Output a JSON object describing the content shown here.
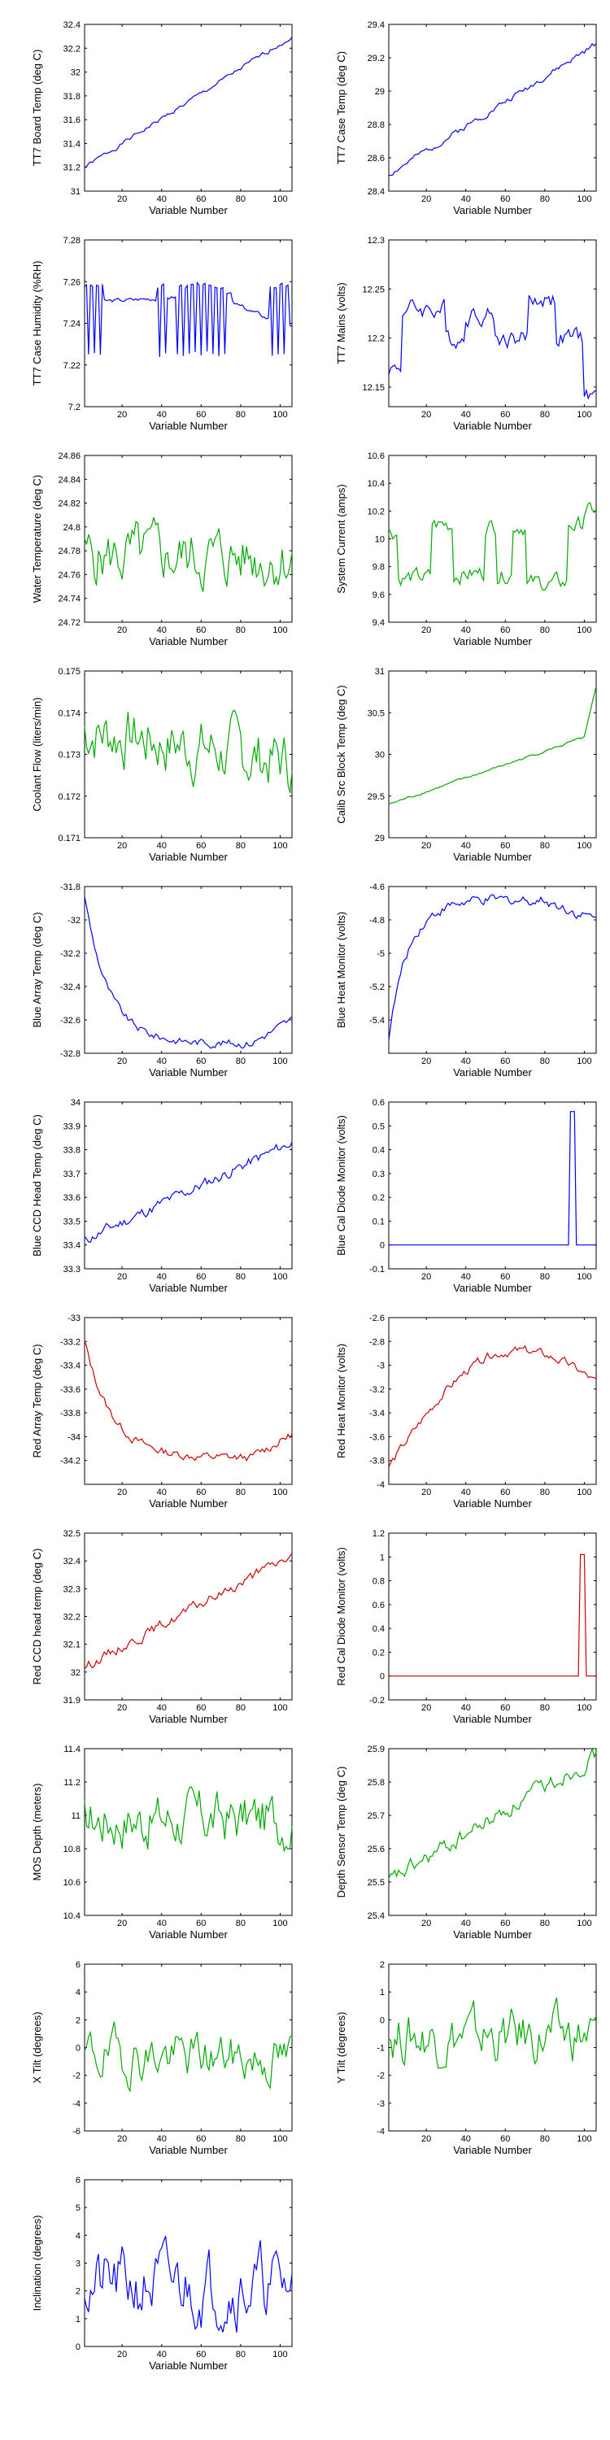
{
  "figure": {
    "background": "#ffffff"
  },
  "chart_data": [
    {
      "type": "line",
      "color": "#0000ff",
      "ylabel": "TT7 Board Temp (deg C)",
      "xlabel": "Variable Number",
      "xlim": [
        1,
        106
      ],
      "ylim": [
        31,
        32.4
      ],
      "xticks": [
        "20",
        "40",
        "60",
        "80",
        "100"
      ],
      "xtick_values": [
        20,
        40,
        60,
        80,
        100
      ],
      "yticks": [
        "31",
        "31.2",
        "31.4",
        "31.6",
        "31.8",
        "32",
        "32.2",
        "32.4"
      ],
      "ytick_values": [
        31,
        31.2,
        31.4,
        31.6,
        31.8,
        32,
        32.2,
        32.4
      ],
      "shape": "linear",
      "y_start": 31.2,
      "y_end": 32.3,
      "noise": 0.015,
      "seed": 1
    },
    {
      "type": "line",
      "color": "#0000ff",
      "ylabel": "TT7 Case Temp (deg C)",
      "xlabel": "Variable Number",
      "xlim": [
        1,
        106
      ],
      "ylim": [
        28.4,
        29.4
      ],
      "xticks": [
        "20",
        "40",
        "60",
        "80",
        "100"
      ],
      "xtick_values": [
        20,
        40,
        60,
        80,
        100
      ],
      "yticks": [
        "28.4",
        "28.6",
        "28.8",
        "29",
        "29.2",
        "29.4"
      ],
      "ytick_values": [
        28.4,
        28.6,
        28.8,
        29,
        29.2,
        29.4
      ],
      "shape": "linear",
      "y_start": 28.5,
      "y_end": 29.28,
      "noise": 0.015,
      "seed": 2
    },
    {
      "type": "line",
      "color": "#0000ff",
      "ylabel": "TT7 Case Humidity (%RH)",
      "xlabel": "Variable Number",
      "xlim": [
        1,
        106
      ],
      "ylim": [
        7.2,
        7.28
      ],
      "xticks": [
        "20",
        "40",
        "60",
        "80",
        "100"
      ],
      "xtick_values": [
        20,
        40,
        60,
        80,
        100
      ],
      "yticks": [
        "7.2",
        "7.22",
        "7.24",
        "7.26",
        "7.28"
      ],
      "ytick_values": [
        7.2,
        7.22,
        7.24,
        7.26,
        7.28
      ],
      "shape": "toggle",
      "y_start": 7.25,
      "y_alt": 7.24,
      "period": 3,
      "blocks": [
        [
          1,
          10
        ],
        [
          38,
          42
        ],
        [
          48,
          72
        ],
        [
          95,
          104
        ]
      ],
      "noise": 0.003,
      "seed": 3
    },
    {
      "type": "line",
      "color": "#0000ff",
      "ylabel": "TT7 Mains  (volts)",
      "xlabel": "Variable Number",
      "xlim": [
        1,
        106
      ],
      "ylim": [
        12.13,
        12.3
      ],
      "xticks": [
        "20",
        "40",
        "60",
        "80",
        "100"
      ],
      "xtick_values": [
        20,
        40,
        60,
        80,
        100
      ],
      "yticks": [
        "12.15",
        "12.2",
        "12.25",
        "12.3"
      ],
      "ytick_values": [
        12.15,
        12.2,
        12.25,
        12.3
      ],
      "shape": "steps",
      "y_start": 12.16,
      "y_end": 12.14,
      "levels": [
        [
          1,
          12.17
        ],
        [
          8,
          12.23
        ],
        [
          30,
          12.2
        ],
        [
          40,
          12.225
        ],
        [
          55,
          12.2
        ],
        [
          72,
          12.24
        ],
        [
          86,
          12.2
        ],
        [
          100,
          12.14
        ]
      ],
      "noise": 0.008,
      "seed": 4
    },
    {
      "type": "line",
      "color": "#00aa00",
      "ylabel": "Water Temperature (deg C)",
      "xlabel": "Variable Number",
      "xlim": [
        1,
        106
      ],
      "ylim": [
        24.72,
        24.86
      ],
      "xticks": [
        "20",
        "40",
        "60",
        "80",
        "100"
      ],
      "xtick_values": [
        20,
        40,
        60,
        80,
        100
      ],
      "yticks": [
        "24.72",
        "24.74",
        "24.76",
        "24.78",
        "24.8",
        "24.82",
        "24.84",
        "24.86"
      ],
      "ytick_values": [
        24.72,
        24.74,
        24.76,
        24.78,
        24.8,
        24.82,
        24.84,
        24.86
      ],
      "shape": "noise",
      "y_start": 24.775,
      "y_end": 24.775,
      "noise": 0.02,
      "seed": 5
    },
    {
      "type": "line",
      "color": "#00aa00",
      "ylabel": "System Current (amps)",
      "xlabel": "Variable Number",
      "xlim": [
        1,
        106
      ],
      "ylim": [
        9.4,
        10.6
      ],
      "xticks": [
        "20",
        "40",
        "60",
        "80",
        "100"
      ],
      "xtick_values": [
        20,
        40,
        60,
        80,
        100
      ],
      "yticks": [
        "9.4",
        "9.6",
        "9.8",
        "10",
        "10.2",
        "10.4",
        "10.6"
      ],
      "ytick_values": [
        9.4,
        9.6,
        9.8,
        10,
        10.2,
        10.4,
        10.6
      ],
      "shape": "steps",
      "y_start": 10.1,
      "y_end": 10.2,
      "levels": [
        [
          1,
          10.05
        ],
        [
          6,
          9.72
        ],
        [
          23,
          10.1
        ],
        [
          34,
          9.75
        ],
        [
          50,
          10.1
        ],
        [
          56,
          9.75
        ],
        [
          64,
          10.1
        ],
        [
          71,
          9.68
        ],
        [
          92,
          10.1
        ],
        [
          100,
          10.2
        ]
      ],
      "noise": 0.05,
      "seed": 6
    },
    {
      "type": "line",
      "color": "#00aa00",
      "ylabel": "Coolant Flow (liters/min)",
      "xlabel": "Variable Number",
      "xlim": [
        1,
        106
      ],
      "ylim": [
        0.171,
        0.175
      ],
      "xticks": [
        "20",
        "40",
        "60",
        "80",
        "100"
      ],
      "xtick_values": [
        20,
        40,
        60,
        80,
        100
      ],
      "yticks": [
        "0.171",
        "0.172",
        "0.173",
        "0.174",
        "0.175"
      ],
      "ytick_values": [
        0.171,
        0.172,
        0.173,
        0.174,
        0.175
      ],
      "shape": "noise",
      "y_start": 0.1736,
      "y_end": 0.1728,
      "noise": 0.0006,
      "seed": 7
    },
    {
      "type": "line",
      "color": "#00aa00",
      "ylabel": "Calib Src Block Temp (deg C)",
      "xlabel": "Variable Number",
      "xlim": [
        1,
        106
      ],
      "ylim": [
        29,
        31
      ],
      "xticks": [
        "20",
        "40",
        "60",
        "80",
        "100"
      ],
      "xtick_values": [
        20,
        40,
        60,
        80,
        100
      ],
      "yticks": [
        "29",
        "29.5",
        "30",
        "30.5",
        "31"
      ],
      "ytick_values": [
        29,
        29.5,
        30,
        30.5,
        31
      ],
      "shape": "linear_tail",
      "y_start": 29.4,
      "y_end": 30.25,
      "tail_end": 30.8,
      "tail_from": 100,
      "noise": 0.012,
      "seed": 8
    },
    {
      "type": "line",
      "color": "#0000ff",
      "ylabel": "Blue Array Temp (deg C)",
      "xlabel": "Variable Number",
      "xlim": [
        1,
        106
      ],
      "ylim": [
        -32.8,
        -31.8
      ],
      "xticks": [
        "20",
        "40",
        "60",
        "80",
        "100"
      ],
      "xtick_values": [
        20,
        40,
        60,
        80,
        100
      ],
      "yticks": [
        "-31.8",
        "-32",
        "-32.2",
        "-32.4",
        "-32.6",
        "-32.8"
      ],
      "ytick_values": [
        -31.8,
        -32,
        -32.2,
        -32.4,
        -32.6,
        -32.8
      ],
      "shape": "decay",
      "y_start": -31.85,
      "y_end": -32.74,
      "rise_to": -32.6,
      "tau": 12,
      "noise": 0.02,
      "seed": 9
    },
    {
      "type": "line",
      "color": "#0000ff",
      "ylabel": "Blue Heat Monitor (volts)",
      "xlabel": "Variable Number",
      "xlim": [
        1,
        106
      ],
      "ylim": [
        -5.6,
        -4.6
      ],
      "xticks": [
        "20",
        "40",
        "60",
        "80",
        "100"
      ],
      "xtick_values": [
        20,
        40,
        60,
        80,
        100
      ],
      "yticks": [
        "-4.6",
        "-4.8",
        "-5",
        "-5.2",
        "-5.4"
      ],
      "ytick_values": [
        -4.6,
        -4.8,
        -5,
        -5.2,
        -5.4
      ],
      "shape": "rise",
      "y_start": -5.5,
      "y_end": -4.68,
      "fall_to": -4.8,
      "tau": 10,
      "noise": 0.025,
      "seed": 10
    },
    {
      "type": "line",
      "color": "#0000ff",
      "ylabel": "Blue CCD Head Temp (deg C)",
      "xlabel": "Variable Number",
      "xlim": [
        1,
        106
      ],
      "ylim": [
        33.3,
        34
      ],
      "xticks": [
        "20",
        "40",
        "60",
        "80",
        "100"
      ],
      "xtick_values": [
        20,
        40,
        60,
        80,
        100
      ],
      "yticks": [
        "33.3",
        "33.4",
        "33.5",
        "33.6",
        "33.7",
        "33.8",
        "33.9",
        "34"
      ],
      "ytick_values": [
        33.3,
        33.4,
        33.5,
        33.6,
        33.7,
        33.8,
        33.9,
        34
      ],
      "shape": "linear",
      "y_start": 33.42,
      "y_end": 33.83,
      "noise": 0.02,
      "seed": 11
    },
    {
      "type": "line",
      "color": "#0000ff",
      "ylabel": "Blue Cal Diode Monitor (volts)",
      "xlabel": "Variable Number",
      "xlim": [
        1,
        106
      ],
      "ylim": [
        -0.1,
        0.6
      ],
      "xticks": [
        "20",
        "40",
        "60",
        "80",
        "100"
      ],
      "xtick_values": [
        20,
        40,
        60,
        80,
        100
      ],
      "yticks": [
        "-0.1",
        "0",
        "0.1",
        "0.2",
        "0.3",
        "0.4",
        "0.5",
        "0.6"
      ],
      "ytick_values": [
        -0.1,
        0,
        0.1,
        0.2,
        0.3,
        0.4,
        0.5,
        0.6
      ],
      "shape": "pulse",
      "y_start": 0,
      "pulse_x": [
        93,
        95
      ],
      "pulse_y": 0.56,
      "noise": 0,
      "seed": 12
    },
    {
      "type": "line",
      "color": "#cc0000",
      "ylabel": "Red Array Temp (deg C)",
      "xlabel": "Variable Number",
      "xlim": [
        1,
        106
      ],
      "ylim": [
        -34.4,
        -33
      ],
      "xticks": [
        "20",
        "40",
        "60",
        "80",
        "100"
      ],
      "xtick_values": [
        20,
        40,
        60,
        80,
        100
      ],
      "yticks": [
        "-33",
        "-33.2",
        "-33.4",
        "-33.6",
        "-33.8",
        "-34",
        "-34.2"
      ],
      "ytick_values": [
        -33,
        -33.2,
        -33.4,
        -33.6,
        -33.8,
        -34,
        -34.2
      ],
      "shape": "decay",
      "y_start": -33.2,
      "y_end": -34.18,
      "rise_to": -33.98,
      "tau": 14,
      "noise": 0.03,
      "seed": 13
    },
    {
      "type": "line",
      "color": "#cc0000",
      "ylabel": "Red Heat Monitor (volts)",
      "xlabel": "Variable Number",
      "xlim": [
        1,
        106
      ],
      "ylim": [
        -4,
        -2.6
      ],
      "xticks": [
        "20",
        "40",
        "60",
        "80",
        "100"
      ],
      "xtick_values": [
        20,
        40,
        60,
        80,
        100
      ],
      "yticks": [
        "-2.6",
        "-2.8",
        "-3",
        "-3.2",
        "-3.4",
        "-3.6",
        "-3.8",
        "-4"
      ],
      "ytick_values": [
        -2.6,
        -2.8,
        -3,
        -3.2,
        -3.4,
        -3.6,
        -3.8,
        -4
      ],
      "shape": "arch",
      "y_start": -3.85,
      "y_peak": -2.88,
      "peak_x": 65,
      "y_end": -3.15,
      "noise": 0.03,
      "seed": 14
    },
    {
      "type": "line",
      "color": "#cc0000",
      "ylabel": "Red CCD head temp (deg C)",
      "xlabel": "Variable Number",
      "xlim": [
        1,
        106
      ],
      "ylim": [
        31.9,
        32.5
      ],
      "xticks": [
        "20",
        "40",
        "60",
        "80",
        "100"
      ],
      "xtick_values": [
        20,
        40,
        60,
        80,
        100
      ],
      "yticks": [
        "31.9",
        "32",
        "32.1",
        "32.2",
        "32.3",
        "32.4",
        "32.5"
      ],
      "ytick_values": [
        31.9,
        32,
        32.1,
        32.2,
        32.3,
        32.4,
        32.5
      ],
      "shape": "linear",
      "y_start": 32.02,
      "y_end": 32.42,
      "noise": 0.015,
      "seed": 15
    },
    {
      "type": "line",
      "color": "#cc0000",
      "ylabel": "Red Cal Diode Monitor (volts)",
      "xlabel": "Variable Number",
      "xlim": [
        1,
        106
      ],
      "ylim": [
        -0.2,
        1.2
      ],
      "xticks": [
        "20",
        "40",
        "60",
        "80",
        "100"
      ],
      "xtick_values": [
        20,
        40,
        60,
        80,
        100
      ],
      "yticks": [
        "-0.2",
        "0",
        "0.2",
        "0.4",
        "0.6",
        "0.8",
        "1",
        "1.2"
      ],
      "ytick_values": [
        -0.2,
        0,
        0.2,
        0.4,
        0.6,
        0.8,
        1,
        1.2
      ],
      "shape": "pulse",
      "y_start": 0,
      "pulse_x": [
        98,
        100
      ],
      "pulse_y": 1.02,
      "noise": 0,
      "seed": 16
    },
    {
      "type": "line",
      "color": "#00aa00",
      "ylabel": "MOS Depth  (meters)",
      "xlabel": "Variable Number",
      "xlim": [
        1,
        106
      ],
      "ylim": [
        10.4,
        11.4
      ],
      "xticks": [
        "20",
        "40",
        "60",
        "80",
        "100"
      ],
      "xtick_values": [
        20,
        40,
        60,
        80,
        100
      ],
      "yticks": [
        "10.4",
        "10.6",
        "10.8",
        "11",
        "11.2",
        "11.4"
      ],
      "ytick_values": [
        10.4,
        10.6,
        10.8,
        11,
        11.2,
        11.4
      ],
      "shape": "noise",
      "y_start": 10.98,
      "y_end": 10.98,
      "noise": 0.13,
      "seed": 17
    },
    {
      "type": "line",
      "color": "#00aa00",
      "ylabel": "Depth Sensor Temp (deg C)",
      "xlabel": "Variable Number",
      "xlim": [
        1,
        106
      ],
      "ylim": [
        25.4,
        25.9
      ],
      "xticks": [
        "20",
        "40",
        "60",
        "80",
        "100"
      ],
      "xtick_values": [
        20,
        40,
        60,
        80,
        100
      ],
      "yticks": [
        "25.4",
        "25.5",
        "25.6",
        "25.7",
        "25.8",
        "25.9"
      ],
      "ytick_values": [
        25.4,
        25.5,
        25.6,
        25.7,
        25.8,
        25.9
      ],
      "shape": "linear",
      "y_start": 25.5,
      "y_end": 25.88,
      "noise": 0.02,
      "seed": 18
    },
    {
      "type": "line",
      "color": "#00aa00",
      "ylabel": "X Tilt  (degrees)",
      "xlabel": "Variable Number",
      "xlim": [
        1,
        106
      ],
      "ylim": [
        -6,
        6
      ],
      "xticks": [
        "20",
        "40",
        "60",
        "80",
        "100"
      ],
      "xtick_values": [
        20,
        40,
        60,
        80,
        100
      ],
      "yticks": [
        "-6",
        "-4",
        "-2",
        "0",
        "2",
        "4",
        "6"
      ],
      "ytick_values": [
        -6,
        -4,
        -2,
        0,
        2,
        4,
        6
      ],
      "shape": "noise",
      "y_start": -0.5,
      "y_end": -0.8,
      "noise": 1.4,
      "seed": 19
    },
    {
      "type": "line",
      "color": "#00aa00",
      "ylabel": "Y Tilt  (degrees)",
      "xlabel": "Variable Number",
      "xlim": [
        1,
        106
      ],
      "ylim": [
        -4,
        2
      ],
      "xticks": [
        "20",
        "40",
        "60",
        "80",
        "100"
      ],
      "xtick_values": [
        20,
        40,
        60,
        80,
        100
      ],
      "yticks": [
        "-4",
        "-3",
        "-2",
        "-1",
        "0",
        "1",
        "2"
      ],
      "ytick_values": [
        -4,
        -3,
        -2,
        -1,
        0,
        1,
        2
      ],
      "shape": "noise",
      "y_start": -0.6,
      "y_end": -0.6,
      "noise": 0.75,
      "seed": 20
    },
    {
      "type": "line",
      "color": "#0000ff",
      "ylabel": "Inclination  (degrees)",
      "xlabel": "Variable Number",
      "xlim": [
        1,
        106
      ],
      "ylim": [
        0,
        6
      ],
      "xticks": [
        "20",
        "40",
        "60",
        "80",
        "100"
      ],
      "xtick_values": [
        20,
        40,
        60,
        80,
        100
      ],
      "yticks": [
        "0",
        "1",
        "2",
        "3",
        "4",
        "5",
        "6"
      ],
      "ytick_values": [
        0,
        1,
        2,
        3,
        4,
        5,
        6
      ],
      "shape": "noise",
      "y_start": 2.2,
      "y_end": 2.2,
      "noise": 1.0,
      "min": 0.2,
      "seed": 21
    }
  ]
}
